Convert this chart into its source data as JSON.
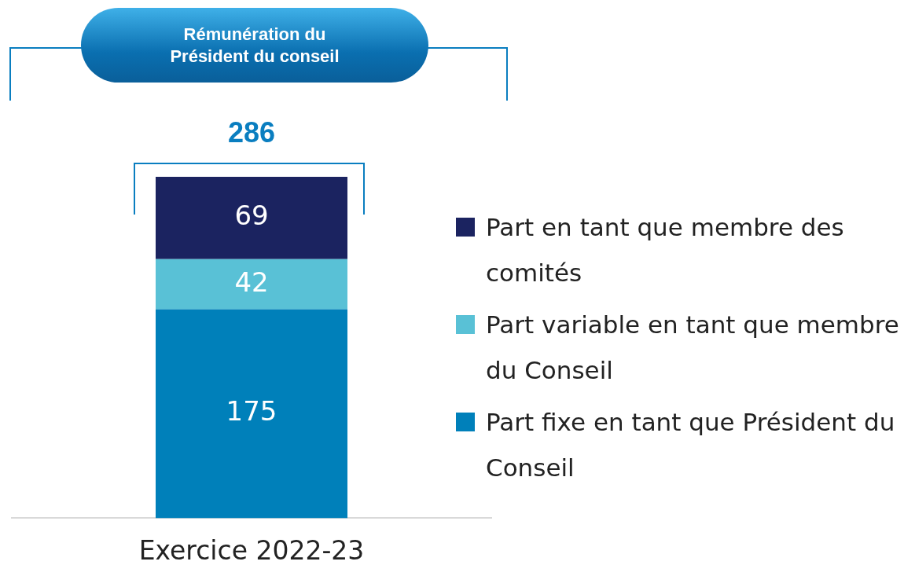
{
  "chart_data": {
    "type": "bar",
    "title": "Rémunération du Président du conseil",
    "categories": [
      "Exercice 2022-23"
    ],
    "stacked": true,
    "data_labels": true,
    "legend": "right",
    "totals": [
      "286"
    ],
    "series": [
      {
        "name": "Part fixe en tant que Président du Conseil",
        "color": "#0080ba",
        "values": [
          175
        ]
      },
      {
        "name": "Part variable en tant que membre du Conseil",
        "color": "#59c1d6",
        "values": [
          42
        ]
      },
      {
        "name": "Part en tant que membre des comités",
        "color": "#1b2360",
        "values": [
          69
        ]
      }
    ]
  }
}
